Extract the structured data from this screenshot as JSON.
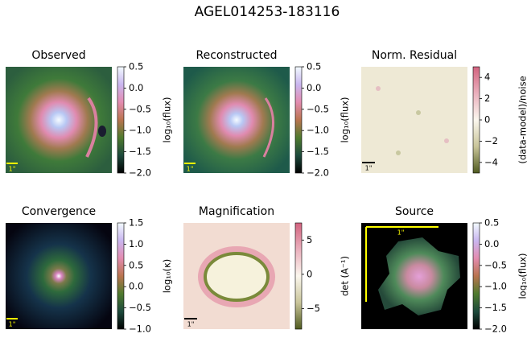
{
  "title": "AGEL014253-183116",
  "chart_data": [
    {
      "type": "image",
      "title": "Observed",
      "colorbar_label": "log₁₀(flux)",
      "clim": [
        -2,
        0.5
      ],
      "cticks": [
        {
          "value": 0.5,
          "label": "0.5"
        },
        {
          "value": 0,
          "label": "0.0"
        },
        {
          "value": -0.5,
          "label": "−0.5"
        },
        {
          "value": -1,
          "label": "−1.0"
        },
        {
          "value": -1.5,
          "label": "−1.5"
        },
        {
          "value": -2,
          "label": "−2.0"
        }
      ],
      "cmap": [
        "#f3fbff",
        "#c9b6ef",
        "#e38cb0",
        "#b9744f",
        "#4f7a2e",
        "#1d4a3c",
        "#000000"
      ],
      "scale_label": "1\""
    },
    {
      "type": "image",
      "title": "Reconstructed",
      "colorbar_label": "log₁₀(flux)",
      "clim": [
        -2,
        0.5
      ],
      "cticks": [
        {
          "value": 0.5,
          "label": "0.5"
        },
        {
          "value": 0,
          "label": "0.0"
        },
        {
          "value": -0.5,
          "label": "−0.5"
        },
        {
          "value": -1,
          "label": "−1.0"
        },
        {
          "value": -1.5,
          "label": "−1.5"
        },
        {
          "value": -2,
          "label": "−2.0"
        }
      ],
      "cmap": [
        "#f3fbff",
        "#c9b6ef",
        "#e38cb0",
        "#b9744f",
        "#4f7a2e",
        "#1d4a3c",
        "#000000"
      ],
      "scale_label": "1\""
    },
    {
      "type": "image",
      "title": "Norm. Residual",
      "colorbar_label": "(data-model)/noise",
      "clim": [
        -5,
        5
      ],
      "cticks": [
        4,
        2,
        0,
        {
          "value": -2,
          "label": "−2"
        },
        {
          "value": -4,
          "label": "−4"
        }
      ],
      "cmap": [
        "#d2637f",
        "#eab0bd",
        "#fbf7ee",
        "#c9c59a",
        "#4f5a1f"
      ],
      "scale_label": "1\""
    },
    {
      "type": "image",
      "title": "Convergence",
      "colorbar_label": "log₁₀(κ)",
      "clim": [
        -1,
        1.5
      ],
      "cticks": [
        {
          "value": 1.5,
          "label": "1.5"
        },
        {
          "value": 1,
          "label": "1.0"
        },
        {
          "value": 0.5,
          "label": "0.5"
        },
        {
          "value": 0,
          "label": "0.0"
        },
        {
          "value": -0.5,
          "label": "−0.5"
        },
        {
          "value": -1,
          "label": "−1.0"
        }
      ],
      "cmap": [
        "#f3fbff",
        "#c9b6ef",
        "#e38cb0",
        "#b9744f",
        "#4f7a2e",
        "#1d4a3c",
        "#000000"
      ],
      "scale_label": "1\""
    },
    {
      "type": "image",
      "title": "Magnification",
      "colorbar_label": "det (A⁻¹)",
      "clim": [
        -8,
        7.5
      ],
      "cticks": [
        5,
        0,
        {
          "value": -5,
          "label": "−5"
        }
      ],
      "cmap": [
        "#d2637f",
        "#eab0bd",
        "#fbf7ee",
        "#c9c59a",
        "#4f5a1f"
      ],
      "scale_label": "1\""
    },
    {
      "type": "image",
      "title": "Source",
      "colorbar_label": "log₁₀(flux)",
      "clim": [
        -2,
        0.5
      ],
      "cticks": [
        {
          "value": 0.5,
          "label": "0.5"
        },
        {
          "value": 0,
          "label": "0.0"
        },
        {
          "value": -0.5,
          "label": "−0.5"
        },
        {
          "value": -1,
          "label": "−1.0"
        },
        {
          "value": -1.5,
          "label": "−1.5"
        },
        {
          "value": -2,
          "label": "−2.0"
        }
      ],
      "cmap": [
        "#f3fbff",
        "#c9b6ef",
        "#e38cb0",
        "#b9744f",
        "#4f7a2e",
        "#1d4a3c",
        "#000000"
      ],
      "scale_label": "1\""
    }
  ]
}
